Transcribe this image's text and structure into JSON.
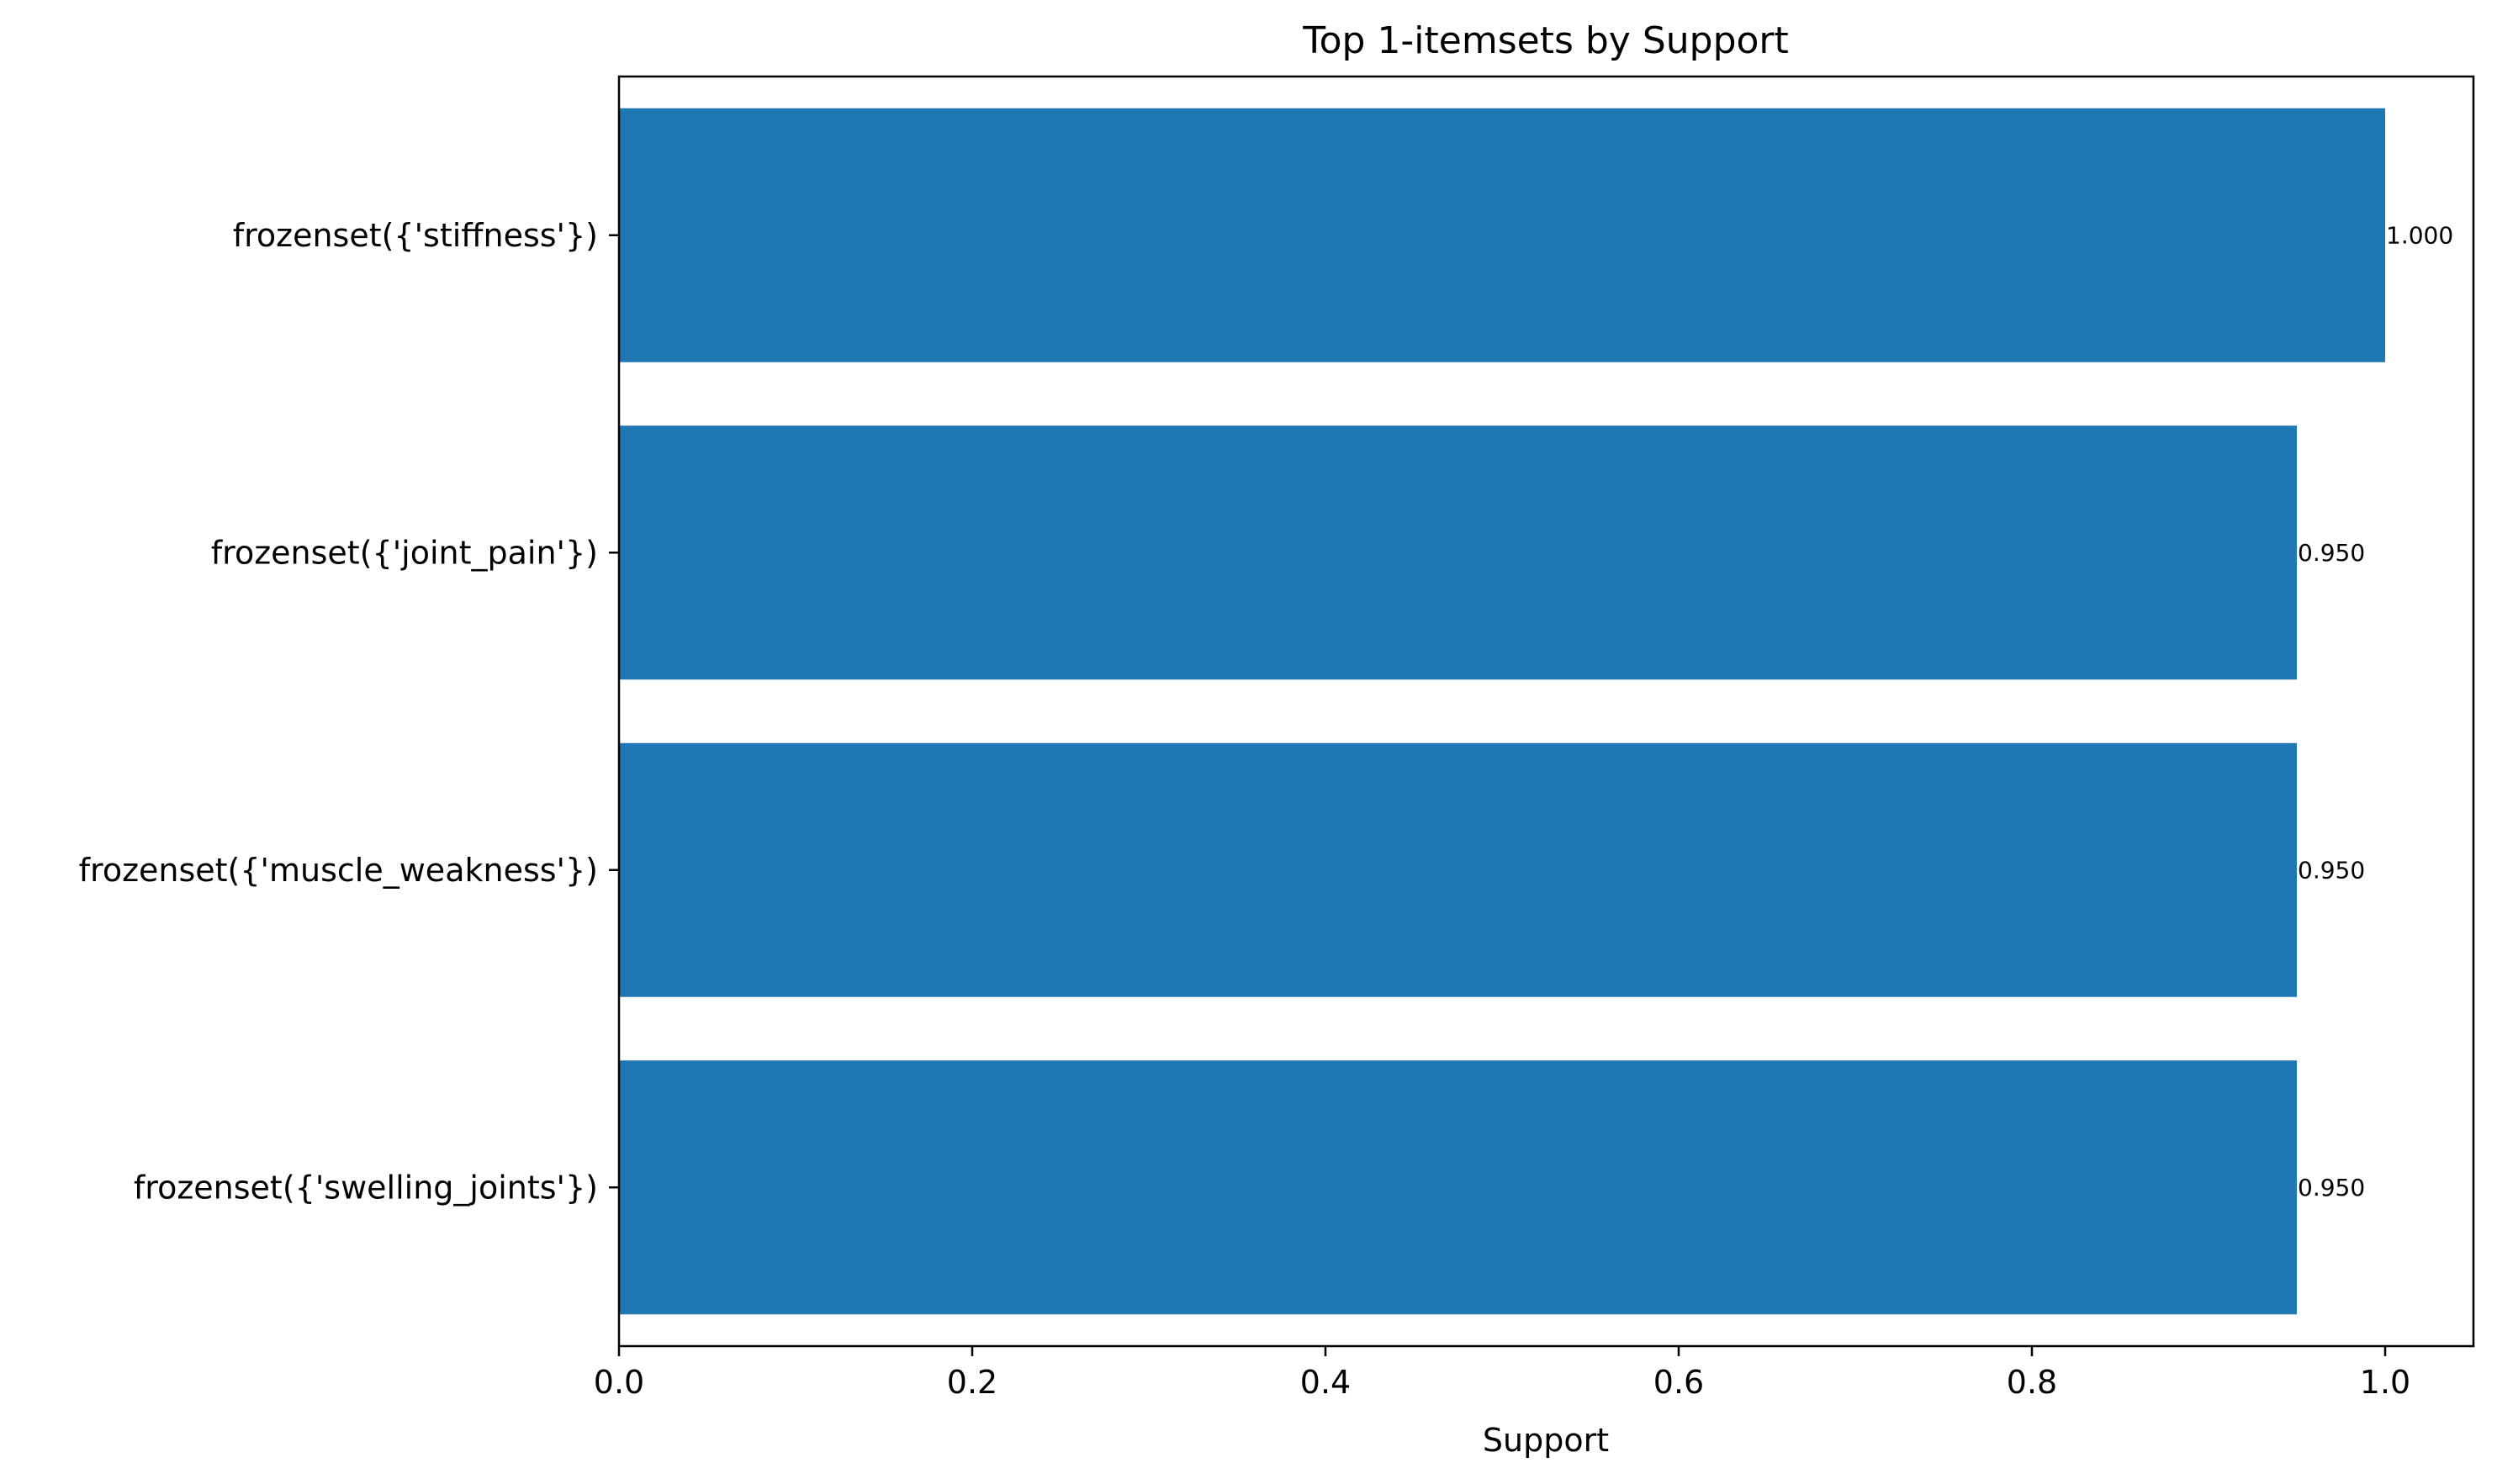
{
  "chart_data": {
    "type": "bar",
    "orientation": "horizontal",
    "title": "Top 1-itemsets by Support",
    "xlabel": "Support",
    "ylabel": "",
    "xlim": [
      0,
      1.05
    ],
    "x_ticks": [
      0.0,
      0.2,
      0.4,
      0.6,
      0.8,
      1.0
    ],
    "x_tick_labels": [
      "0.0",
      "0.2",
      "0.4",
      "0.6",
      "0.8",
      "1.0"
    ],
    "categories": [
      "frozenset({'stiffness'})",
      "frozenset({'joint_pain'})",
      "frozenset({'muscle_weakness'})",
      "frozenset({'swelling_joints'})"
    ],
    "values": [
      1.0,
      0.95,
      0.95,
      0.95
    ],
    "value_labels": [
      "1.000",
      "0.950",
      "0.950",
      "0.950"
    ],
    "bar_color": "#1f77b4",
    "grid": false,
    "legend": "none"
  }
}
